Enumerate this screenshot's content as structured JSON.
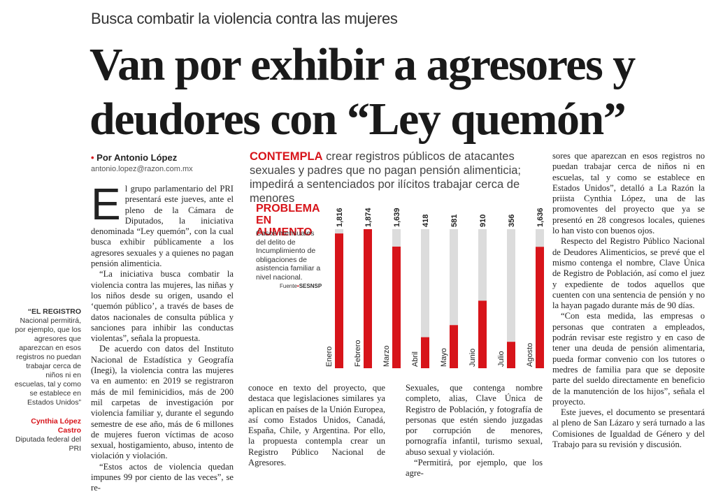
{
  "kicker": "Busca combatir la violencia contra las mujeres",
  "headline": [
    "Van por exhibir a agresores y",
    "deudores con “Ley quemón”"
  ],
  "byline": {
    "author": "Por Antonio López",
    "email": "antonio.lopez@razon.com.mx"
  },
  "sidebar": {
    "quote_lead": "“EL REGISTRO",
    "quote": "Nacional permitirá, por ejemplo, que los agresores que aparezcan en esos registros no puedan trabajar cerca de niños ni en escuelas, tal y como se establece en Estados Unidos”",
    "author": "Cynthia López Castro",
    "role": "Diputada federal del PRI"
  },
  "summary": {
    "lead": "CONTEMPLA",
    "text": "crear registros públicos de atacantes sexuales y padres que no pagan pensión alimenticia; impedirá a sentenciados por ilícitos trabajar cerca de menores"
  },
  "chart_data": {
    "type": "bar",
    "title": "PROBLEMA EN AUMENTO",
    "subtitle": "Casos mensuales del delito de Incumplimiento de obligaciones de asistencia familiar a nivel nacional.",
    "source_label": "Fuente",
    "source": "SESNSP",
    "categories": [
      "Enero",
      "Febrero",
      "Marzo",
      "Abril",
      "Mayo",
      "Junio",
      "Julio",
      "Agosto"
    ],
    "values": [
      1816,
      1874,
      1639,
      418,
      581,
      910,
      356,
      1636
    ],
    "value_labels": [
      "1,816",
      "1,874",
      "1,639",
      "418",
      "581",
      "910",
      "356",
      "1,636"
    ],
    "color": "#d7141a",
    "track_color": "#dcdcdc"
  },
  "columns": [
    [
      "El grupo parlamentario del PRI presentará este jueves, ante el pleno de la Cámara de Diputados, la iniciativa denominada “Ley quemón”, con la cual busca exhibir públicamente a los agresores sexuales y a quienes no pagan pensión alimenticia.",
      "“La iniciativa busca combatir la violencia contra las mujeres, las niñas y los niños desde su origen, usando el ‘quemón público’, a través de bases de datos nacionales de consulta pública y sanciones para inhibir las conductas violentas”, señala la propuesta.",
      "De acuerdo con datos del Instituto Nacional de Estadística y Geografía (Inegi), la violencia contra las mujeres va en aumento: en 2019 se registraron más de mil feminicidios, más de 200 mil carpetas de investigación por violencia familiar y, durante el segundo semestre de ese año, más de 6 millones de mujeres fueron víctimas de acoso sexual, hostigamiento, abuso, intento de violación y violación.",
      "“Estos actos de violencia quedan impunes 99 por ciento de las veces”, se re-"
    ],
    [
      "conoce en texto del proyecto, que destaca que legislaciones similares ya aplican en países de la Unión Europea, así como Estados Unidos, Canadá, España, Chile, y Argentina. Por ello, la propuesta contempla crear un Registro Público Nacional de Agresores."
    ],
    [
      "Sexuales, que contenga nombre completo, alias, Clave Única de Registro de Población, y fotografía de personas que estén siendo juzgadas por corrupción de menores, pornografía infantil, turismo sexual, abuso sexual y violación.",
      "“Permitirá, por ejemplo, que los agre-"
    ],
    [
      "sores que aparezcan en esos registros no puedan trabajar cerca de niños ni en escuelas, tal y como se establece en Estados Unidos”, detalló a La Razón la priista Cynthia López, una de las promoventes del proyecto que ya se presentó en 28 congresos locales, quienes lo han visto con buenos ojos.",
      "Respecto del Registro Público Nacional de Deudores Alimenticios, se prevé que el mismo contenga el nombre, Clave Única de Registro de Población, así como el juez y expediente de todos aquellos que cuenten con una sentencia de pensión y no la hayan pagado durante más de 90 días.",
      "“Con esta medida, las empresas o personas que contraten a empleados, podrán revisar este registro y en caso de tener una deuda de pensión alimentaria, pueda formar convenio con los tutores o medres de familia para que se deposite parte del sueldo directamente en beneficio de la manutención de los hijos”, señala el proyecto.",
      "Este jueves, el documento se presentará al pleno de San Lázaro y será turnado a las Comisiones de Igualdad de Género y del Trabajo para su revisión y discusión."
    ]
  ]
}
